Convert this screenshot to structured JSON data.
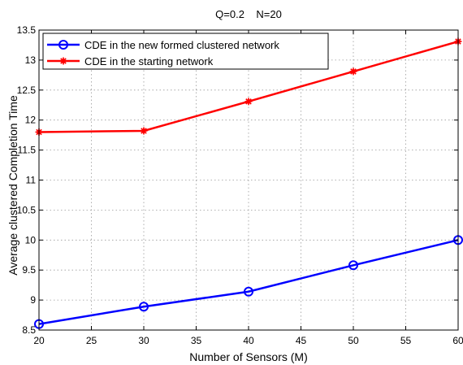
{
  "chart_data": {
    "type": "line",
    "title": "Q=0.2    N=20",
    "xlabel": "Number of Sensors (M)",
    "ylabel": "Average clustered Completion Time",
    "xlim": [
      20,
      60
    ],
    "ylim": [
      8.5,
      13.5
    ],
    "xticks": [
      20,
      25,
      30,
      35,
      40,
      45,
      50,
      55,
      60
    ],
    "yticks": [
      8.5,
      9,
      9.5,
      10,
      10.5,
      11,
      11.5,
      12,
      12.5,
      13,
      13.5
    ],
    "grid": true,
    "legend_position": "top-left",
    "series": [
      {
        "name": "CDE in the new formed clustered network",
        "color": "#0000ff",
        "marker": "circle",
        "x": [
          20,
          30,
          40,
          50,
          60
        ],
        "y": [
          8.6,
          8.89,
          9.14,
          9.58,
          10.0
        ]
      },
      {
        "name": "CDE in the starting network",
        "color": "#ff0000",
        "marker": "star",
        "x": [
          20,
          30,
          40,
          50,
          60
        ],
        "y": [
          11.8,
          11.82,
          12.31,
          12.81,
          13.31
        ]
      }
    ]
  }
}
